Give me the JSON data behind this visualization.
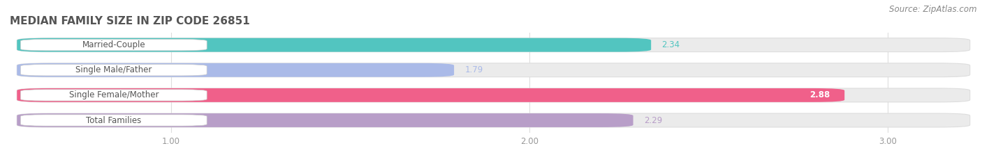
{
  "title": "MEDIAN FAMILY SIZE IN ZIP CODE 26851",
  "source": "Source: ZipAtlas.com",
  "categories": [
    "Married-Couple",
    "Single Male/Father",
    "Single Female/Mother",
    "Total Families"
  ],
  "values": [
    2.34,
    1.79,
    2.88,
    2.29
  ],
  "bar_colors": [
    "#52C5C0",
    "#AABAE8",
    "#F0608A",
    "#B89EC8"
  ],
  "bar_bg_colors": [
    "#EBEBEB",
    "#EBEBEB",
    "#EBEBEB",
    "#EBEBEB"
  ],
  "value_colors": [
    "#52C5C0",
    "#AABAE8",
    "#FFFFFF",
    "#B89EC8"
  ],
  "xlim_min": 0.55,
  "xlim_max": 3.25,
  "xticks": [
    1.0,
    2.0,
    3.0
  ],
  "xtick_labels": [
    "1.00",
    "2.00",
    "3.00"
  ],
  "figsize": [
    14.06,
    2.33
  ],
  "dpi": 100,
  "title_fontsize": 11,
  "label_fontsize": 8.5,
  "value_fontsize": 8.5,
  "source_fontsize": 8.5,
  "bg_color": "#FFFFFF",
  "title_color": "#555555",
  "label_text_color": "#555555",
  "tick_color": "#999999"
}
